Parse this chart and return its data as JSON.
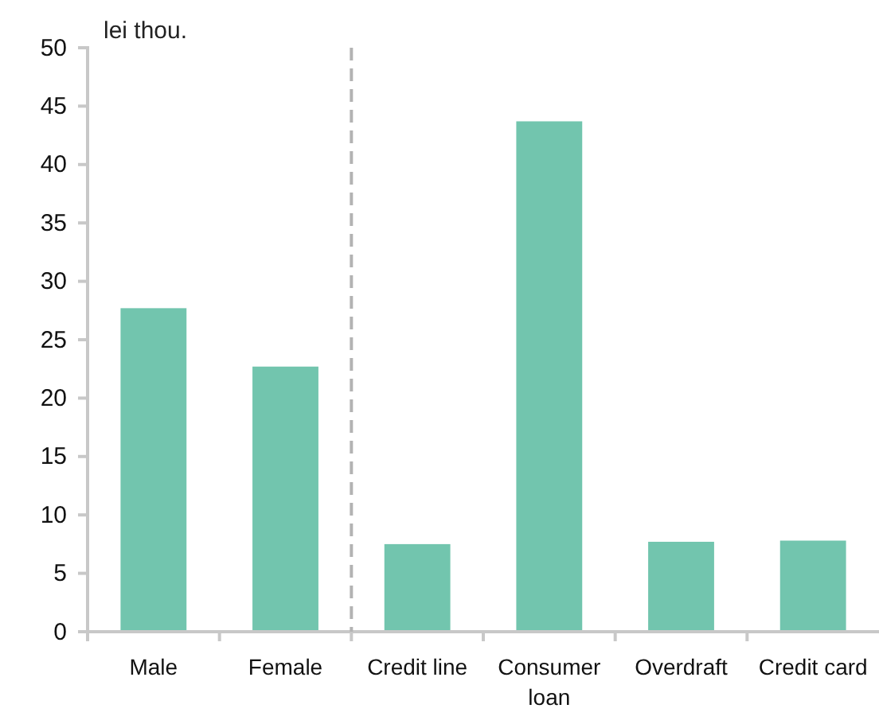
{
  "chart_data": {
    "type": "bar",
    "ylabel": "lei thou.",
    "categories": [
      "Male",
      "Female",
      "Credit line",
      "Consumer loan",
      "Overdraft",
      "Credit card"
    ],
    "values": [
      27.7,
      22.7,
      7.5,
      43.7,
      7.7,
      7.8
    ],
    "color": "#72c5ae",
    "ylim": [
      0,
      50
    ],
    "yticks": [
      0,
      5,
      10,
      15,
      20,
      25,
      30,
      35,
      40,
      45,
      50
    ],
    "grid": false
  }
}
